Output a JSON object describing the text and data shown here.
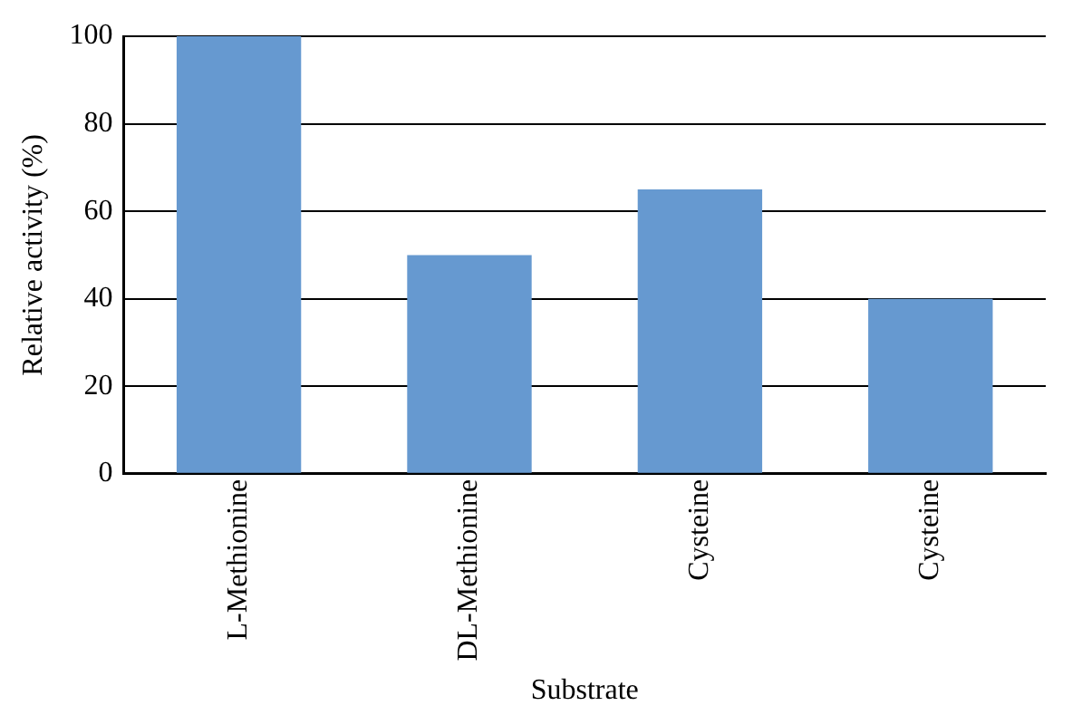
{
  "chart_data": {
    "type": "bar",
    "xlabel": "Substrate",
    "ylabel": "Relative activity (%)",
    "categories": [
      "L-Methionine",
      "DL-Methionine",
      "Cysteine",
      "Cysteine"
    ],
    "values": [
      100,
      50,
      65,
      40
    ],
    "color": "#6699d0",
    "ylim": [
      0,
      100
    ],
    "yticks": [
      0,
      20,
      40,
      60,
      80,
      100
    ],
    "grid": "y"
  }
}
